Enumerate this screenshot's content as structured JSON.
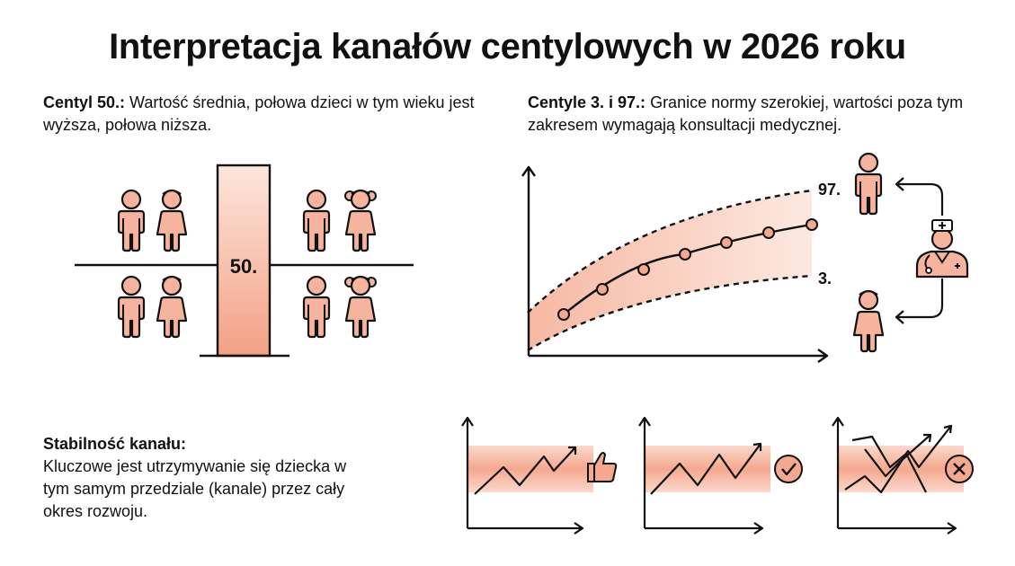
{
  "title": "Interpretacja kanałów centylowych w 2026 roku",
  "colors": {
    "accent": "#f4a88f",
    "accent_light": "#fbe1d6",
    "figure": "#f6b49f",
    "ink": "#111111"
  },
  "sections": {
    "median": {
      "heading": "Centyl 50.:",
      "text": " Wartość średnia, połowa dzieci w tym wieku jest wyższa, połowa niższa.",
      "bar_label": "50."
    },
    "range": {
      "heading": "Centyle 3. i 97.:",
      "text": " Granice normy szerokiej, wartości poza tym zakresem wymagają konsultacji medycznej.",
      "upper_label": "97.",
      "lower_label": "3."
    },
    "stability": {
      "heading": "Stabilność kanału:",
      "text": "Kluczowe jest utrzymywanie się dziecka w tym samym przedziale (kanale) przez cały okres rozwoju."
    }
  },
  "icons": {
    "figures": [
      "child-icon",
      "girl-icon",
      "child-icon",
      "girl-icon",
      "child-icon",
      "girl-icon",
      "child-icon",
      "girl-icon"
    ],
    "doctor": "doctor-icon",
    "mini_chart_badges": [
      "thumbs-up-icon",
      "check-circle-icon",
      "x-circle-icon"
    ]
  }
}
